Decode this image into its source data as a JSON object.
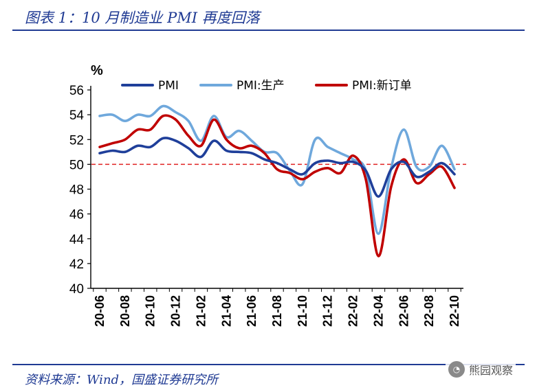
{
  "header": {
    "title": "图表 1：10 月制造业 PMI 再度回落"
  },
  "footer": {
    "source": "资料来源：Wind，国盛证券研究所"
  },
  "watermark": {
    "text": "熊园观察",
    "icon": "wechat-icon"
  },
  "colors": {
    "pmi": "#1f3f9a",
    "production": "#6fa8dc",
    "new_orders": "#c00000",
    "reference": "#e02020",
    "frame": "#1f3a93"
  },
  "chart_data": {
    "type": "line",
    "title": "10 月制造业 PMI 再度回落",
    "ylabel": "%",
    "xlabel": "",
    "ylim": [
      40,
      56
    ],
    "yticks": [
      40,
      42,
      44,
      46,
      48,
      50,
      52,
      54,
      56
    ],
    "grid": false,
    "legend_position": "top",
    "reference_line": {
      "value": 50,
      "style": "dashed"
    },
    "x": [
      "20-06",
      "20-07",
      "20-08",
      "20-09",
      "20-10",
      "20-11",
      "20-12",
      "21-01",
      "21-02",
      "21-03",
      "21-04",
      "21-05",
      "21-06",
      "21-07",
      "21-08",
      "21-09",
      "21-10",
      "21-11",
      "21-12",
      "22-01",
      "22-02",
      "22-03",
      "22-04",
      "22-05",
      "22-06",
      "22-07",
      "22-08",
      "22-09",
      "22-10"
    ],
    "xtick_labels": [
      "20-06",
      "20-08",
      "20-10",
      "20-12",
      "21-02",
      "21-04",
      "21-06",
      "21-08",
      "21-10",
      "21-12",
      "22-02",
      "22-04",
      "22-06",
      "22-08",
      "22-10"
    ],
    "series": [
      {
        "name": "PMI",
        "key": "pmi",
        "values": [
          50.9,
          51.1,
          51.0,
          51.5,
          51.4,
          52.1,
          51.9,
          51.3,
          50.6,
          51.9,
          51.1,
          51.0,
          50.9,
          50.4,
          50.1,
          49.6,
          49.2,
          50.1,
          50.3,
          50.1,
          50.2,
          49.5,
          47.4,
          49.6,
          50.2,
          49.0,
          49.4,
          50.1,
          49.2
        ]
      },
      {
        "name": "PMI:生产",
        "key": "production",
        "values": [
          53.9,
          54.0,
          53.5,
          54.0,
          53.9,
          54.7,
          54.2,
          53.5,
          51.9,
          53.9,
          52.2,
          52.7,
          51.9,
          51.0,
          50.9,
          49.5,
          48.4,
          52.0,
          51.4,
          50.9,
          50.4,
          49.5,
          44.4,
          49.7,
          52.8,
          49.8,
          49.8,
          51.5,
          49.6
        ]
      },
      {
        "name": "PMI:新订单",
        "key": "new_orders",
        "values": [
          51.4,
          51.7,
          52.0,
          52.8,
          52.8,
          53.9,
          53.6,
          52.3,
          51.5,
          53.6,
          52.0,
          51.3,
          51.5,
          50.9,
          49.6,
          49.3,
          48.8,
          49.4,
          49.7,
          49.3,
          50.7,
          48.8,
          42.6,
          48.2,
          50.4,
          48.5,
          49.2,
          49.8,
          48.1
        ]
      }
    ]
  }
}
